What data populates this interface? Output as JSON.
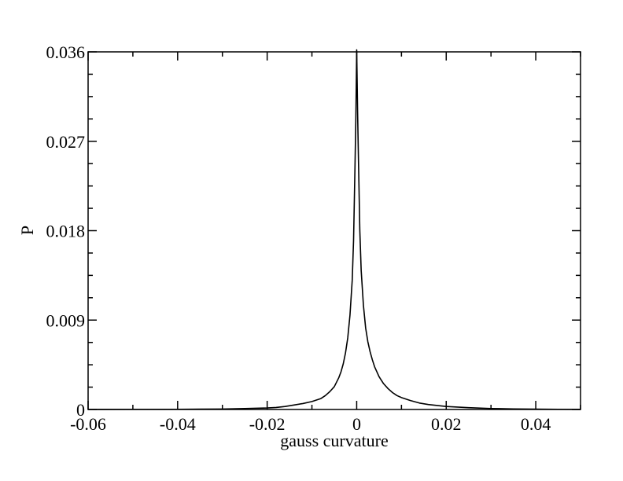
{
  "chart_data": {
    "type": "line",
    "title": "",
    "xlabel": "gauss curvature",
    "ylabel": "P",
    "xlim": [
      -0.06,
      0.05
    ],
    "ylim": [
      0,
      0.036
    ],
    "x_ticks": [
      -0.06,
      -0.04,
      -0.02,
      0,
      0.02,
      0.04
    ],
    "x_tick_labels": [
      "-0.06",
      "-0.04",
      "-0.02",
      "0",
      "0.02",
      "0.04"
    ],
    "y_ticks": [
      0,
      0.009,
      0.018,
      0.027,
      0.036
    ],
    "y_tick_labels": [
      "0",
      "0.009",
      "0.018",
      "0.027",
      "0.036"
    ],
    "grid": false,
    "legend": "none",
    "colors": {
      "line": "#000000",
      "frame": "#000000"
    },
    "series": [
      {
        "x": [
          -0.06,
          -0.05,
          -0.04,
          -0.03,
          -0.025,
          -0.02,
          -0.018,
          -0.016,
          -0.014,
          -0.012,
          -0.01,
          -0.009,
          -0.008,
          -0.007,
          -0.006,
          -0.005,
          -0.004,
          -0.0035,
          -0.003,
          -0.0025,
          -0.002,
          -0.0015,
          -0.001,
          -0.0007,
          -0.0004,
          -0.0002,
          0,
          0.0002,
          0.0004,
          0.0007,
          0.001,
          0.0015,
          0.002,
          0.0025,
          0.003,
          0.0035,
          0.004,
          0.005,
          0.006,
          0.007,
          0.008,
          0.009,
          0.01,
          0.012,
          0.014,
          0.016,
          0.018,
          0.02,
          0.025,
          0.03,
          0.035,
          0.04,
          0.045,
          0.05
        ],
        "y": [
          0,
          1e-05,
          2e-05,
          5e-05,
          0.0001,
          0.00015,
          0.0002,
          0.0003,
          0.00045,
          0.0006,
          0.0008,
          0.00095,
          0.0011,
          0.0014,
          0.0018,
          0.0023,
          0.0032,
          0.0038,
          0.0046,
          0.0057,
          0.0072,
          0.0095,
          0.013,
          0.017,
          0.024,
          0.029,
          0.0362,
          0.03,
          0.025,
          0.018,
          0.014,
          0.0105,
          0.0082,
          0.0068,
          0.0058,
          0.005,
          0.0043,
          0.0033,
          0.0026,
          0.0021,
          0.0017,
          0.0014,
          0.0012,
          0.0009,
          0.00065,
          0.0005,
          0.0004,
          0.0003,
          0.00018,
          0.0001,
          6e-05,
          4e-05,
          2e-05,
          1e-05
        ]
      }
    ]
  }
}
